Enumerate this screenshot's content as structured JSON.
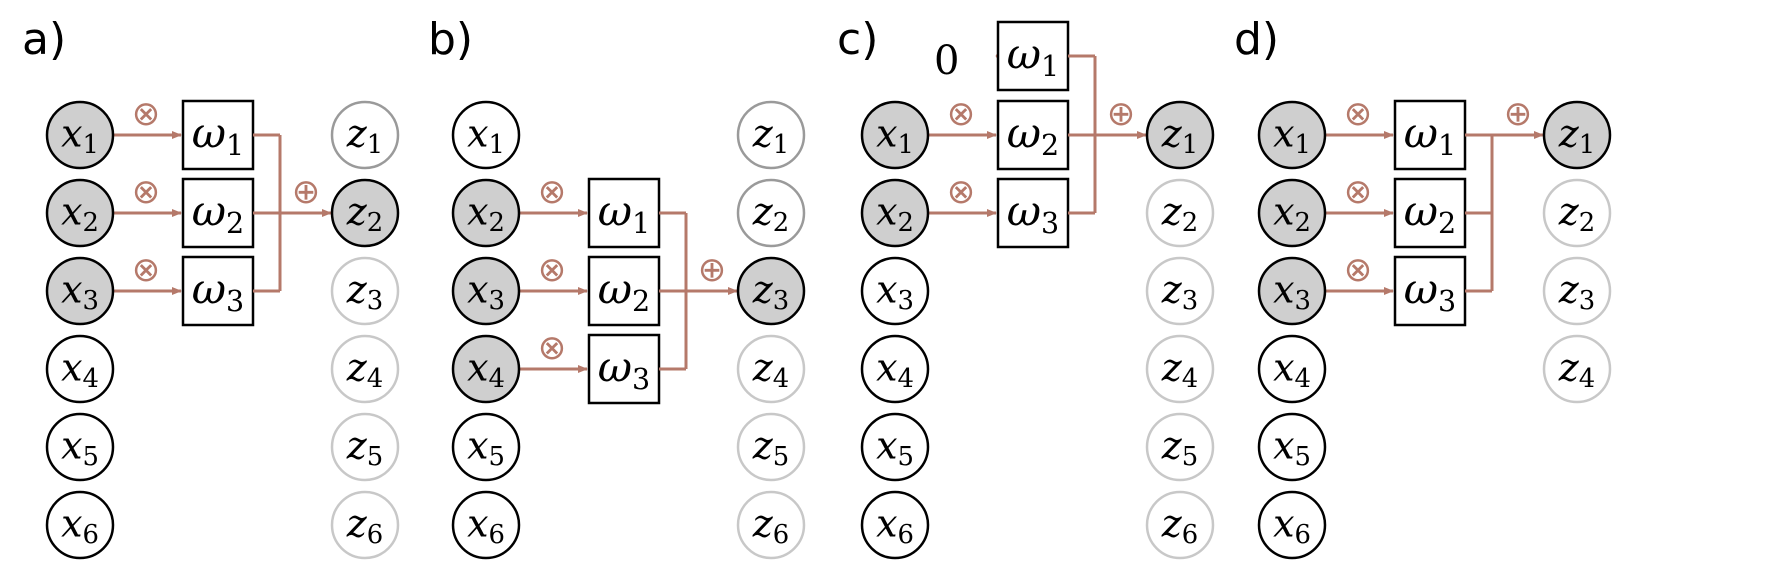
{
  "colors": {
    "active_fill": "#cfcfcf",
    "active_stroke": "#000000",
    "inactive_stroke": "#000000",
    "faded_stroke": "#c8c8c8",
    "faded_text": "#8a8a8a",
    "connection": "#b5796a"
  },
  "symbols": {
    "multiply": "⊗",
    "add": "⊕",
    "weight_letter": "ω",
    "input_letter": "x",
    "output_letter": "z"
  },
  "panels": [
    {
      "label": "a)",
      "inputs": [
        "1",
        "2",
        "3",
        "4",
        "5",
        "6"
      ],
      "active_inputs": [
        1,
        2,
        3
      ],
      "outputs": [
        "1",
        "2",
        "3",
        "4",
        "5",
        "6"
      ],
      "active_output": 2,
      "weights": [
        "1",
        "2",
        "3"
      ],
      "connected_inputs": [
        1,
        2,
        3
      ]
    },
    {
      "label": "b)",
      "inputs": [
        "1",
        "2",
        "3",
        "4",
        "5",
        "6"
      ],
      "active_inputs": [
        2,
        3,
        4
      ],
      "outputs": [
        "1",
        "2",
        "3",
        "4",
        "5",
        "6"
      ],
      "active_output": 3,
      "weights": [
        "1",
        "2",
        "3"
      ],
      "connected_inputs": [
        2,
        3,
        4
      ]
    },
    {
      "label": "c)",
      "inputs": [
        "1",
        "2",
        "3",
        "4",
        "5",
        "6"
      ],
      "active_inputs": [
        1,
        2
      ],
      "outputs": [
        "1",
        "2",
        "3",
        "4",
        "5",
        "6"
      ],
      "active_output": 1,
      "weights": [
        "1",
        "2",
        "3"
      ],
      "connected_inputs": [
        0,
        1,
        2
      ],
      "padding_value": "0"
    },
    {
      "label": "d)",
      "inputs": [
        "1",
        "2",
        "3",
        "4",
        "5",
        "6"
      ],
      "active_inputs": [
        1,
        2,
        3
      ],
      "outputs": [
        "1",
        "2",
        "3",
        "4"
      ],
      "active_output": 1,
      "weights": [
        "1",
        "2",
        "3"
      ],
      "connected_inputs": [
        1,
        2,
        3
      ]
    }
  ]
}
